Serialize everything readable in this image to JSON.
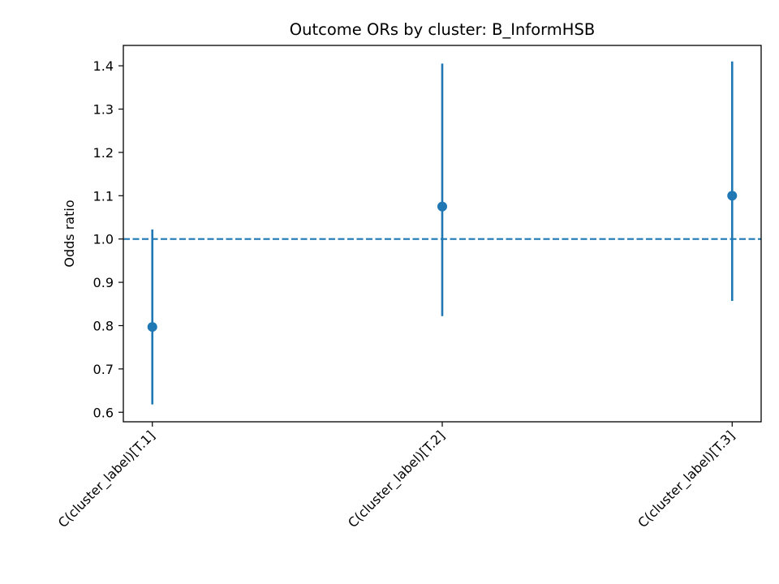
{
  "chart_data": {
    "type": "scatter",
    "title": "Outcome ORs by cluster: B_InformHSB",
    "xlabel": "",
    "ylabel": "Odds ratio",
    "categories": [
      "C(cluster_label)[T.1]",
      "C(cluster_label)[T.2]",
      "C(cluster_label)[T.3]"
    ],
    "series": [
      {
        "values": [
          0.797,
          1.075,
          1.1
        ],
        "ci_lower": [
          0.618,
          0.822,
          0.857
        ],
        "ci_upper": [
          1.022,
          1.405,
          1.41
        ],
        "color": "#1f77b4"
      }
    ],
    "reference_line": {
      "y": 1.0,
      "style": "dashed",
      "color": "#1f77b4"
    },
    "ylim": [
      0.578,
      1.447
    ],
    "yticks": [
      0.6,
      0.7,
      0.8,
      0.9,
      1.0,
      1.1,
      1.2,
      1.3,
      1.4
    ],
    "ytick_labels": [
      "0.6",
      "0.7",
      "0.8",
      "0.9",
      "1.0",
      "1.1",
      "1.2",
      "1.3",
      "1.4"
    ],
    "grid": false,
    "legend": "none"
  }
}
